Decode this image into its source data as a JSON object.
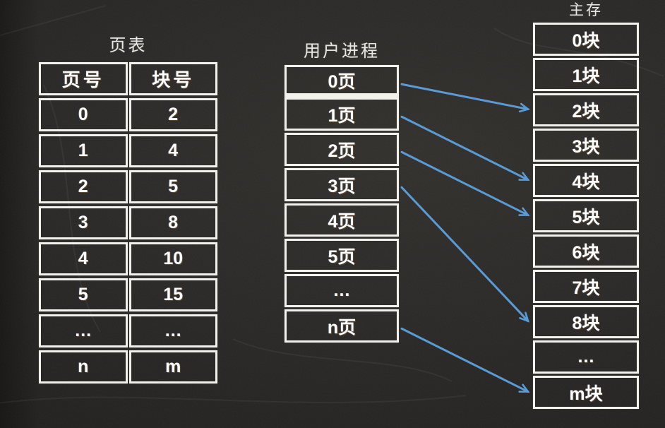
{
  "colors": {
    "background": "#282624",
    "border": "#f3f1ec",
    "text": "#ffffff",
    "title_text": "#e9e7e1",
    "arrow": "#5b9bd5"
  },
  "page_table": {
    "title": "页表",
    "headers": [
      "页号",
      "块号"
    ],
    "rows": [
      [
        "0",
        "2"
      ],
      [
        "1",
        "4"
      ],
      [
        "2",
        "5"
      ],
      [
        "3",
        "8"
      ],
      [
        "4",
        "10"
      ],
      [
        "5",
        "15"
      ],
      [
        "…",
        "…"
      ],
      [
        "n",
        "m"
      ]
    ]
  },
  "user_process": {
    "title": "用户进程",
    "cells": [
      "0页",
      "1页",
      "2页",
      "3页",
      "4页",
      "5页",
      "…",
      "n页"
    ]
  },
  "main_memory": {
    "title": "主存",
    "cells": [
      "0块",
      "1块",
      "2块",
      "3块",
      "4块",
      "5块",
      "6块",
      "7块",
      "8块",
      "…",
      "m块"
    ]
  },
  "arrows": [
    {
      "from_page": 0,
      "to_block": 2
    },
    {
      "from_page": 1,
      "to_block": 4
    },
    {
      "from_page": 2,
      "to_block": 5
    },
    {
      "from_page": 3,
      "to_block": 8
    },
    {
      "from_page": 7,
      "to_block": 10
    }
  ]
}
